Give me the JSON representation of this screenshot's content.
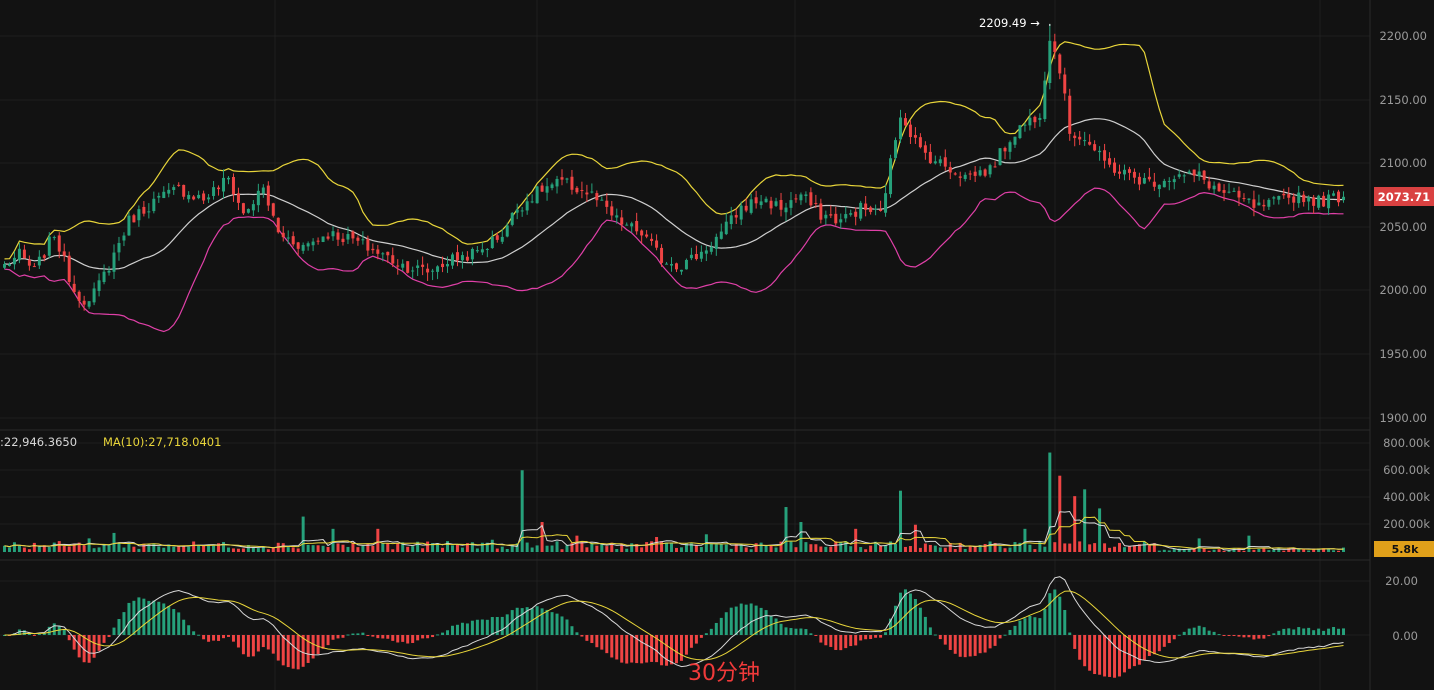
{
  "colors": {
    "background": "#121212",
    "grid": "#1f1f1f",
    "up": "#26a17b",
    "down": "#ef4444",
    "boll_upper": "#e8d53a",
    "boll_mid": "#cfcfcf",
    "boll_lower": "#e040a8",
    "ma_white": "#d8d8d8",
    "ma_yellow": "#e8d53a",
    "price_badge": "#d94141",
    "volume_badge": "#e0a01a",
    "text": "#9a9a9a"
  },
  "timeframe_label": "30分钟",
  "price_panel": {
    "ticks": [
      "2200.00",
      "2150.00",
      "2100.00",
      "2050.00",
      "2000.00",
      "1950.00",
      "1900.00"
    ],
    "current_price": "2073.71",
    "high_marker": "2209.49 →"
  },
  "volume_panel": {
    "ticks": [
      "800.00k",
      "600.00k",
      "400.00k",
      "200.00k"
    ],
    "ma5_readout": ":22,946.3650",
    "ma10_readout": "MA(10):27,718.0401",
    "current_volume": "5.8k"
  },
  "macd_panel": {
    "ticks": [
      "20.00",
      "0.00"
    ]
  },
  "chart_data": {
    "type": "candlestick",
    "price_range": [
      1900,
      2220
    ],
    "high": 2209.49,
    "last": 2073.71,
    "volume_range_k": [
      0,
      800
    ],
    "macd_range": [
      -25,
      28
    ],
    "close_anchors": [
      [
        0,
        2020
      ],
      [
        3,
        2028
      ],
      [
        6,
        2015
      ],
      [
        10,
        2045
      ],
      [
        14,
        2000
      ],
      [
        17,
        1990
      ],
      [
        21,
        2020
      ],
      [
        25,
        2055
      ],
      [
        30,
        2070
      ],
      [
        35,
        2080
      ],
      [
        40,
        2072
      ],
      [
        45,
        2088
      ],
      [
        48,
        2060
      ],
      [
        52,
        2080
      ],
      [
        55,
        2045
      ],
      [
        60,
        2035
      ],
      [
        65,
        2045
      ],
      [
        70,
        2040
      ],
      [
        75,
        2030
      ],
      [
        80,
        2020
      ],
      [
        85,
        2015
      ],
      [
        90,
        2025
      ],
      [
        95,
        2030
      ],
      [
        100,
        2045
      ],
      [
        103,
        2065
      ],
      [
        108,
        2080
      ],
      [
        112,
        2085
      ],
      [
        118,
        2075
      ],
      [
        123,
        2055
      ],
      [
        128,
        2045
      ],
      [
        132,
        2025
      ],
      [
        136,
        2020
      ],
      [
        140,
        2030
      ],
      [
        144,
        2045
      ],
      [
        148,
        2065
      ],
      [
        152,
        2072
      ],
      [
        156,
        2065
      ],
      [
        160,
        2075
      ],
      [
        164,
        2060
      ],
      [
        168,
        2055
      ],
      [
        172,
        2065
      ],
      [
        176,
        2060
      ],
      [
        180,
        2140
      ],
      [
        184,
        2110
      ],
      [
        188,
        2100
      ],
      [
        193,
        2090
      ],
      [
        198,
        2095
      ],
      [
        203,
        2125
      ],
      [
        208,
        2140
      ],
      [
        210,
        2200
      ],
      [
        212,
        2175
      ],
      [
        214,
        2125
      ],
      [
        217,
        2120
      ],
      [
        221,
        2100
      ],
      [
        226,
        2090
      ],
      [
        230,
        2085
      ],
      [
        235,
        2090
      ],
      [
        240,
        2090
      ],
      [
        244,
        2078
      ],
      [
        248,
        2072
      ],
      [
        252,
        2065
      ],
      [
        256,
        2070
      ],
      [
        260,
        2075
      ],
      [
        264,
        2070
      ],
      [
        268,
        2074
      ]
    ],
    "volume_spikes_k": [
      [
        17,
        100
      ],
      [
        22,
        140
      ],
      [
        60,
        260
      ],
      [
        66,
        170
      ],
      [
        75,
        170
      ],
      [
        98,
        90
      ],
      [
        104,
        600
      ],
      [
        108,
        220
      ],
      [
        115,
        120
      ],
      [
        131,
        110
      ],
      [
        141,
        130
      ],
      [
        157,
        330
      ],
      [
        160,
        220
      ],
      [
        171,
        170
      ],
      [
        180,
        450
      ],
      [
        183,
        200
      ],
      [
        205,
        170
      ],
      [
        210,
        730
      ],
      [
        212,
        560
      ],
      [
        215,
        410
      ],
      [
        217,
        460
      ],
      [
        220,
        320
      ],
      [
        240,
        100
      ],
      [
        250,
        120
      ]
    ]
  }
}
